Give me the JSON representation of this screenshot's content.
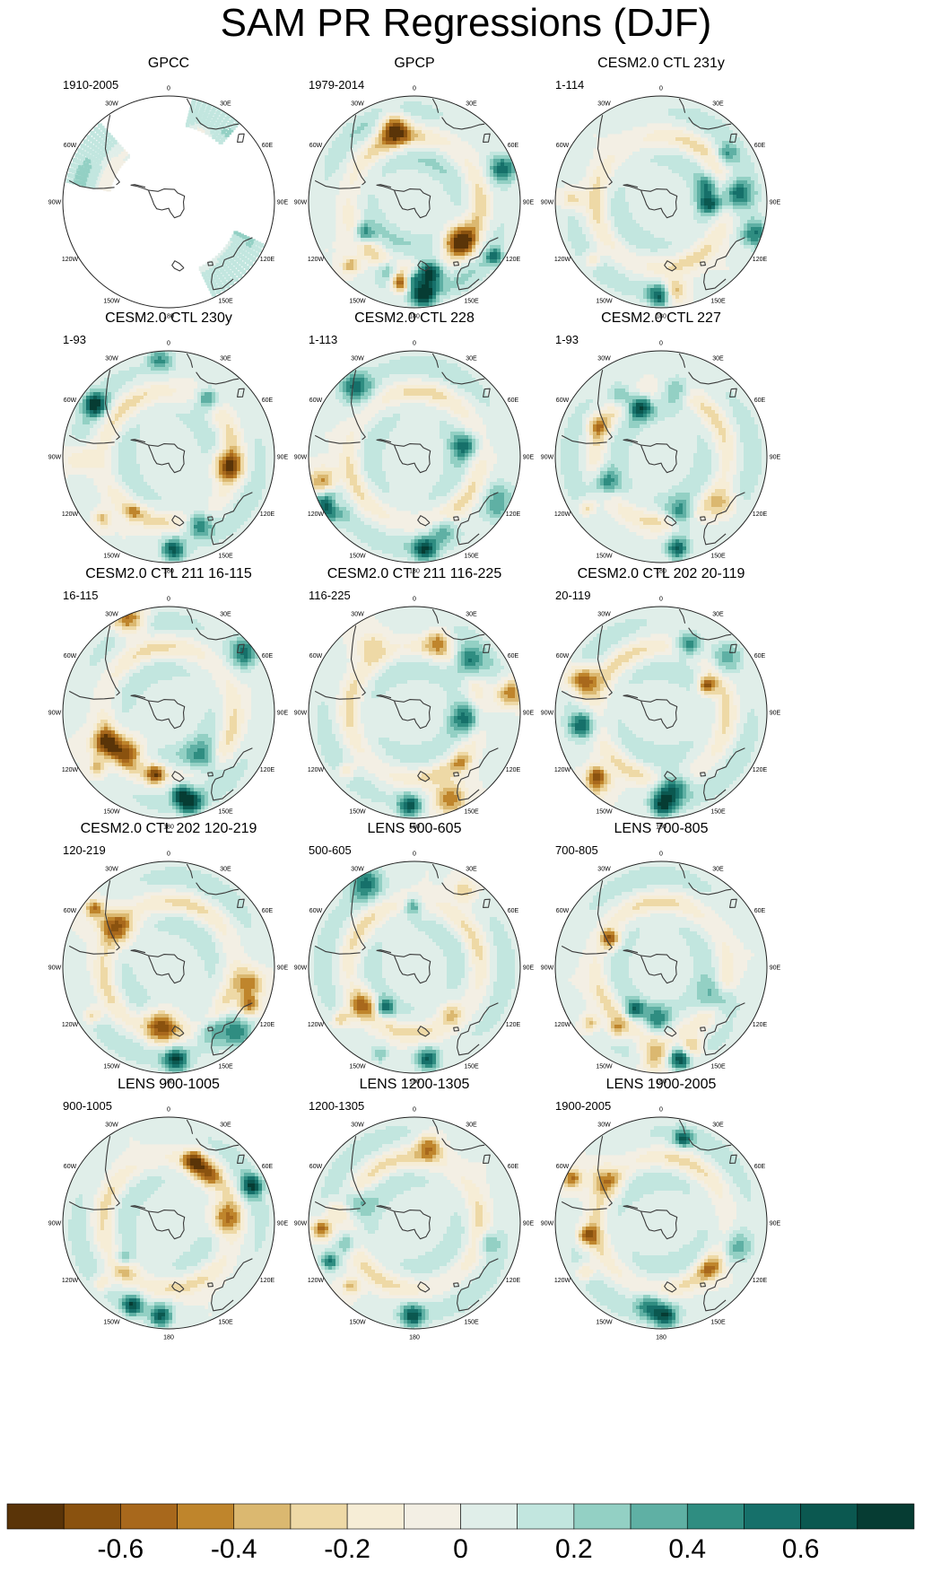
{
  "chart_data": {
    "type": "heatmap",
    "title": "SAM PR Regressions (DJF)",
    "projection": "south-polar stereographic",
    "longitude_labels": [
      "0",
      "30E",
      "60E",
      "90E",
      "120E",
      "150E",
      "180",
      "150W",
      "120W",
      "90W",
      "60W",
      "30W"
    ],
    "colorbar": {
      "levels": [
        -0.7,
        -0.6,
        -0.5,
        -0.4,
        -0.3,
        -0.2,
        -0.1,
        0,
        0.1,
        0.2,
        0.3,
        0.4,
        0.5,
        0.6,
        0.7
      ],
      "tick_values": [
        -0.6,
        -0.4,
        -0.2,
        0,
        0.2,
        0.4,
        0.6
      ],
      "tick_labels": [
        "-0.6",
        "-0.4",
        "-0.2",
        "0",
        "0.2",
        "0.4",
        "0.6"
      ],
      "colors": [
        "#5a3408",
        "#8a520f",
        "#a8681c",
        "#bf852c",
        "#dbb870",
        "#eed9a6",
        "#f6edd6",
        "#f3efe4",
        "#e0eee9",
        "#c2e6df",
        "#93d0c4",
        "#5fb0a4",
        "#2f8d81",
        "#16706a",
        "#0b5850",
        "#063c33"
      ]
    },
    "panels": [
      {
        "title": "GPCC",
        "period": "1910-2005",
        "observational_land_only": true,
        "pattern": "obs_gpcc"
      },
      {
        "title": "GPCP",
        "period": "1979-2014",
        "pattern": "obs_gpcp"
      },
      {
        "title": "CESM2.0 CTL 231y",
        "period": "1-114",
        "pattern": "model"
      },
      {
        "title": "CESM2.0 CTL 230y",
        "period": "1-93",
        "pattern": "model"
      },
      {
        "title": "CESM2.0 CTL 228",
        "period": "1-113",
        "pattern": "model"
      },
      {
        "title": "CESM2.0 CTL 227",
        "period": "1-93",
        "pattern": "model"
      },
      {
        "title": "CESM2.0 CTL 211 16-115",
        "period": "16-115",
        "pattern": "model"
      },
      {
        "title": "CESM2.0 CTL 211 116-225",
        "period": "116-225",
        "pattern": "model"
      },
      {
        "title": "CESM2.0 CTL 202 20-119",
        "period": "20-119",
        "pattern": "model"
      },
      {
        "title": "CESM2.0 CTL 202 120-219",
        "period": "120-219",
        "pattern": "model"
      },
      {
        "title": "LENS 500-605",
        "period": "500-605",
        "pattern": "model"
      },
      {
        "title": "LENS 700-805",
        "period": "700-805",
        "pattern": "model"
      },
      {
        "title": "LENS 900-1005",
        "period": "900-1005",
        "pattern": "model"
      },
      {
        "title": "LENS 1200-1305",
        "period": "1200-1305",
        "pattern": "model"
      },
      {
        "title": "LENS 1900-2005",
        "period": "1900-2005",
        "pattern": "model"
      }
    ]
  }
}
